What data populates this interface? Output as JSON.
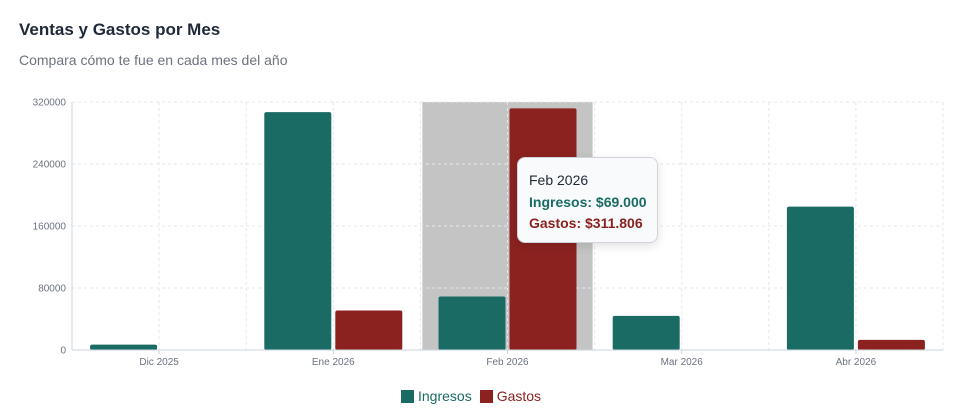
{
  "title": "Ventas y Gastos por Mes",
  "subtitle": "Compara cómo te fue en cada mes del año",
  "colors": {
    "ingresos": "#1a6b63",
    "gastos": "#8b2220",
    "highlight": "#c4c4c4"
  },
  "chart_data": {
    "type": "bar",
    "categories": [
      "Dic 2025",
      "Ene 2026",
      "Feb 2026",
      "Mar 2026",
      "Abr 2026"
    ],
    "series": [
      {
        "name": "Ingresos",
        "values": [
          7000,
          307000,
          69000,
          44000,
          185000
        ]
      },
      {
        "name": "Gastos",
        "values": [
          0,
          51000,
          311806,
          0,
          13000
        ]
      }
    ],
    "ylim": [
      0,
      320000
    ],
    "yticks": [
      "0",
      "80000",
      "160000",
      "240000",
      "320000"
    ],
    "grid": true,
    "legend": "bottom",
    "highlighted_category": "Feb 2026"
  },
  "tooltip": {
    "title": "Feb 2026",
    "ingresos": "Ingresos: $69.000",
    "gastos": "Gastos: $311.806"
  },
  "legend": {
    "ingresos": "Ingresos",
    "gastos": "Gastos"
  }
}
